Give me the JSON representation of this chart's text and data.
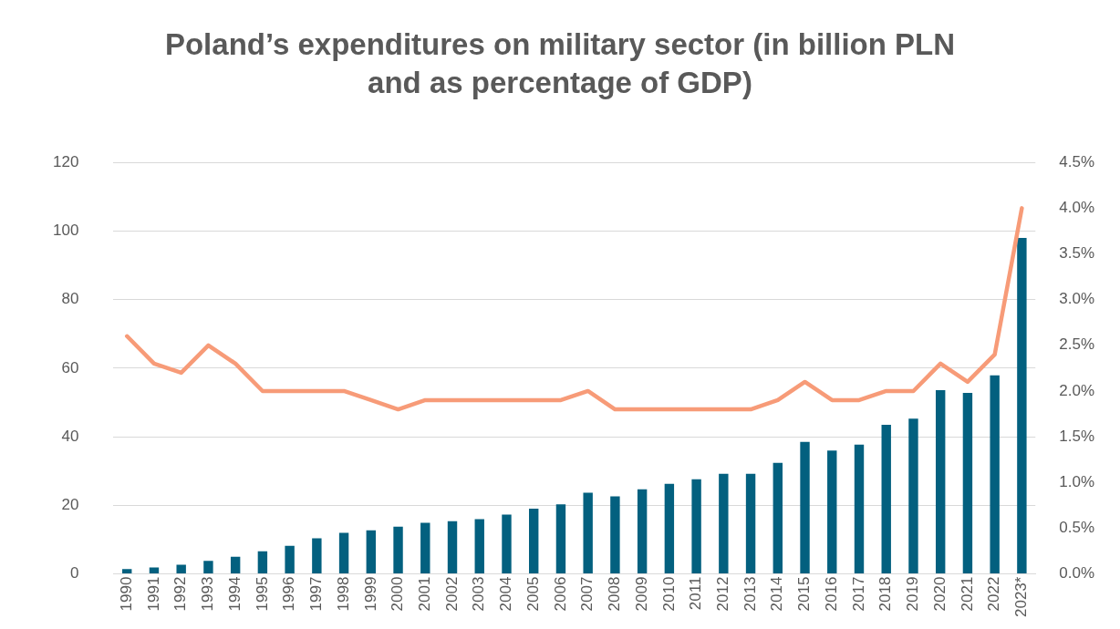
{
  "chart_data": {
    "type": "bar",
    "title": "Poland’s expenditures on military sector (in billion PLN and as percentage of GDP)",
    "categories": [
      "1990",
      "1991",
      "1992",
      "1993",
      "1994",
      "1995",
      "1996",
      "1997",
      "1998",
      "1999",
      "2000",
      "2001",
      "2002",
      "2003",
      "2004",
      "2005",
      "2006",
      "2007",
      "2008",
      "2009",
      "2010",
      "2011",
      "2012",
      "2013",
      "2014",
      "2015",
      "2016",
      "2017",
      "2018",
      "2019",
      "2020",
      "2021",
      "2022",
      "2023*"
    ],
    "series": [
      {
        "color": "#03607f",
        "values": [
          1.4,
          1.9,
          2.7,
          3.8,
          5.0,
          6.6,
          8.2,
          10.4,
          12.0,
          12.7,
          13.8,
          14.9,
          15.4,
          16.0,
          17.3,
          19.0,
          20.3,
          23.7,
          22.6,
          24.7,
          26.3,
          27.6,
          29.2,
          29.2,
          32.4,
          38.5,
          36.0,
          37.7,
          43.5,
          45.3,
          53.6,
          52.8,
          57.9,
          98.0
        ]
      },
      {
        "type": "line",
        "axis": "y2",
        "color": "#f79b78",
        "values": [
          2.6,
          2.3,
          2.2,
          2.5,
          2.3,
          2.0,
          2.0,
          2.0,
          2.0,
          1.9,
          1.8,
          1.9,
          1.9,
          1.9,
          1.9,
          1.9,
          1.9,
          2.0,
          1.8,
          1.8,
          1.8,
          1.8,
          1.8,
          1.8,
          1.9,
          2.1,
          1.9,
          1.9,
          2.0,
          2.0,
          2.3,
          2.1,
          2.4,
          4.0
        ]
      }
    ],
    "ylim": [
      0,
      120
    ],
    "yticks": [
      0,
      20,
      40,
      60,
      80,
      100,
      120
    ],
    "y2lim": [
      0,
      4.5
    ],
    "y2ticks": [
      {
        "value": 0,
        "label": "0.0%"
      },
      {
        "value": 0.5,
        "label": "0.5%"
      },
      {
        "value": 1,
        "label": "1.0%"
      },
      {
        "value": 1.5,
        "label": "1.5%"
      },
      {
        "value": 2,
        "label": "2.0%"
      },
      {
        "value": 2.5,
        "label": "2.5%"
      },
      {
        "value": 3,
        "label": "3.0%"
      },
      {
        "value": 3.5,
        "label": "3.5%"
      },
      {
        "value": 4,
        "label": "4.0%"
      },
      {
        "value": 4.5,
        "label": "4.5%"
      }
    ],
    "grid": "y",
    "legend": false,
    "marker": "none",
    "line_style": "solid"
  }
}
